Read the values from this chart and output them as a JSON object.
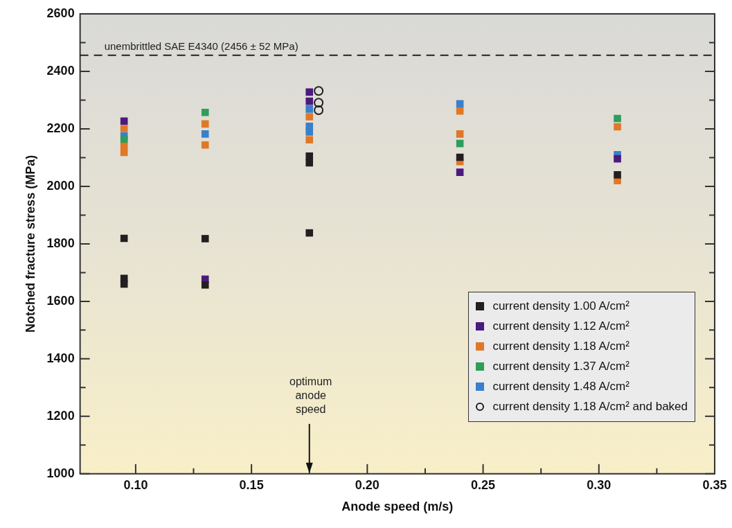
{
  "chart_data": {
    "type": "scatter",
    "xlabel": "Anode speed (m/s)",
    "ylabel": "Notched fracture stress (MPa)",
    "xlim": [
      0.076,
      0.35
    ],
    "xticks": [
      {
        "value": 0.1,
        "label": "0.10"
      },
      {
        "value": 0.125,
        "label": null
      },
      {
        "value": 0.15,
        "label": "0.15"
      },
      {
        "value": 0.175,
        "label": null
      },
      {
        "value": 0.2,
        "label": "0.20"
      },
      {
        "value": 0.225,
        "label": null
      },
      {
        "value": 0.25,
        "label": "0.25"
      },
      {
        "value": 0.275,
        "label": null
      },
      {
        "value": 0.3,
        "label": "0.30"
      },
      {
        "value": 0.325,
        "label": null
      },
      {
        "value": 0.35,
        "label": "0.35"
      }
    ],
    "ylim": [
      1000,
      2600
    ],
    "yticks": [
      1000,
      {
        "value": 1100,
        "label": null
      },
      1200,
      {
        "value": 1300,
        "label": null
      },
      1400,
      {
        "value": 1500,
        "label": null
      },
      1600,
      {
        "value": 1700,
        "label": null
      },
      1800,
      {
        "value": 1900,
        "label": null
      },
      2000,
      {
        "value": 2100,
        "label": null
      },
      2200,
      {
        "value": 2300,
        "label": null
      },
      2400,
      {
        "value": 2500,
        "label": null
      },
      2600
    ],
    "grid": false,
    "legend": "bottom right",
    "series": [
      {
        "name": "current density 1.00 A/cm²",
        "color": "#231f20",
        "marker": "square",
        "x": [
          0.095,
          0.095,
          0.095,
          0.13,
          0.13,
          0.175,
          0.175,
          0.175,
          0.24,
          0.308
        ],
        "values": [
          1819,
          1680,
          1660,
          1818,
          1657,
          1838,
          2105,
          2082,
          2101,
          2040
        ]
      },
      {
        "name": "current density 1.12 A/cm²",
        "color": "#4b1a7f",
        "marker": "square",
        "x": [
          0.095,
          0.13,
          0.175,
          0.175,
          0.24,
          0.308
        ],
        "values": [
          2227,
          1677,
          2328,
          2296,
          2049,
          2096
        ]
      },
      {
        "name": "current density 1.18 A/cm²",
        "color": "#e07828",
        "marker": "square",
        "x": [
          0.095,
          0.095,
          0.095,
          0.13,
          0.13,
          0.175,
          0.175,
          0.24,
          0.24,
          0.24,
          0.308,
          0.308
        ],
        "values": [
          2201,
          2139,
          2118,
          2217,
          2144,
          2242,
          2162,
          2262,
          2182,
          2086,
          2207,
          2020
        ]
      },
      {
        "name": "current density 1.37 A/cm²",
        "color": "#2e9e5a",
        "marker": "square",
        "x": [
          0.095,
          0.13,
          0.24,
          0.308
        ],
        "values": [
          2162,
          2257,
          2149,
          2236
        ]
      },
      {
        "name": "current density 1.48 A/cm²",
        "color": "#3a7fcb",
        "marker": "square",
        "x": [
          0.095,
          0.13,
          0.175,
          0.175,
          0.175,
          0.24,
          0.308
        ],
        "values": [
          2175,
          2182,
          2269,
          2209,
          2189,
          2287,
          2110
        ]
      },
      {
        "name": "current density 1.18 A/cm² and baked",
        "color": "#231f20",
        "marker": "circle",
        "x": [
          0.179,
          0.179,
          0.179
        ],
        "values": [
          2332,
          2291,
          2265
        ]
      }
    ],
    "ref_lines": [
      {
        "axis": "y",
        "value": 2456,
        "label": "unembrittled SAE E4340 (2456 ± 52 MPa)",
        "line_style": "dashed",
        "color": "#222222"
      }
    ],
    "annotations": [
      "optimum anode speed"
    ]
  }
}
